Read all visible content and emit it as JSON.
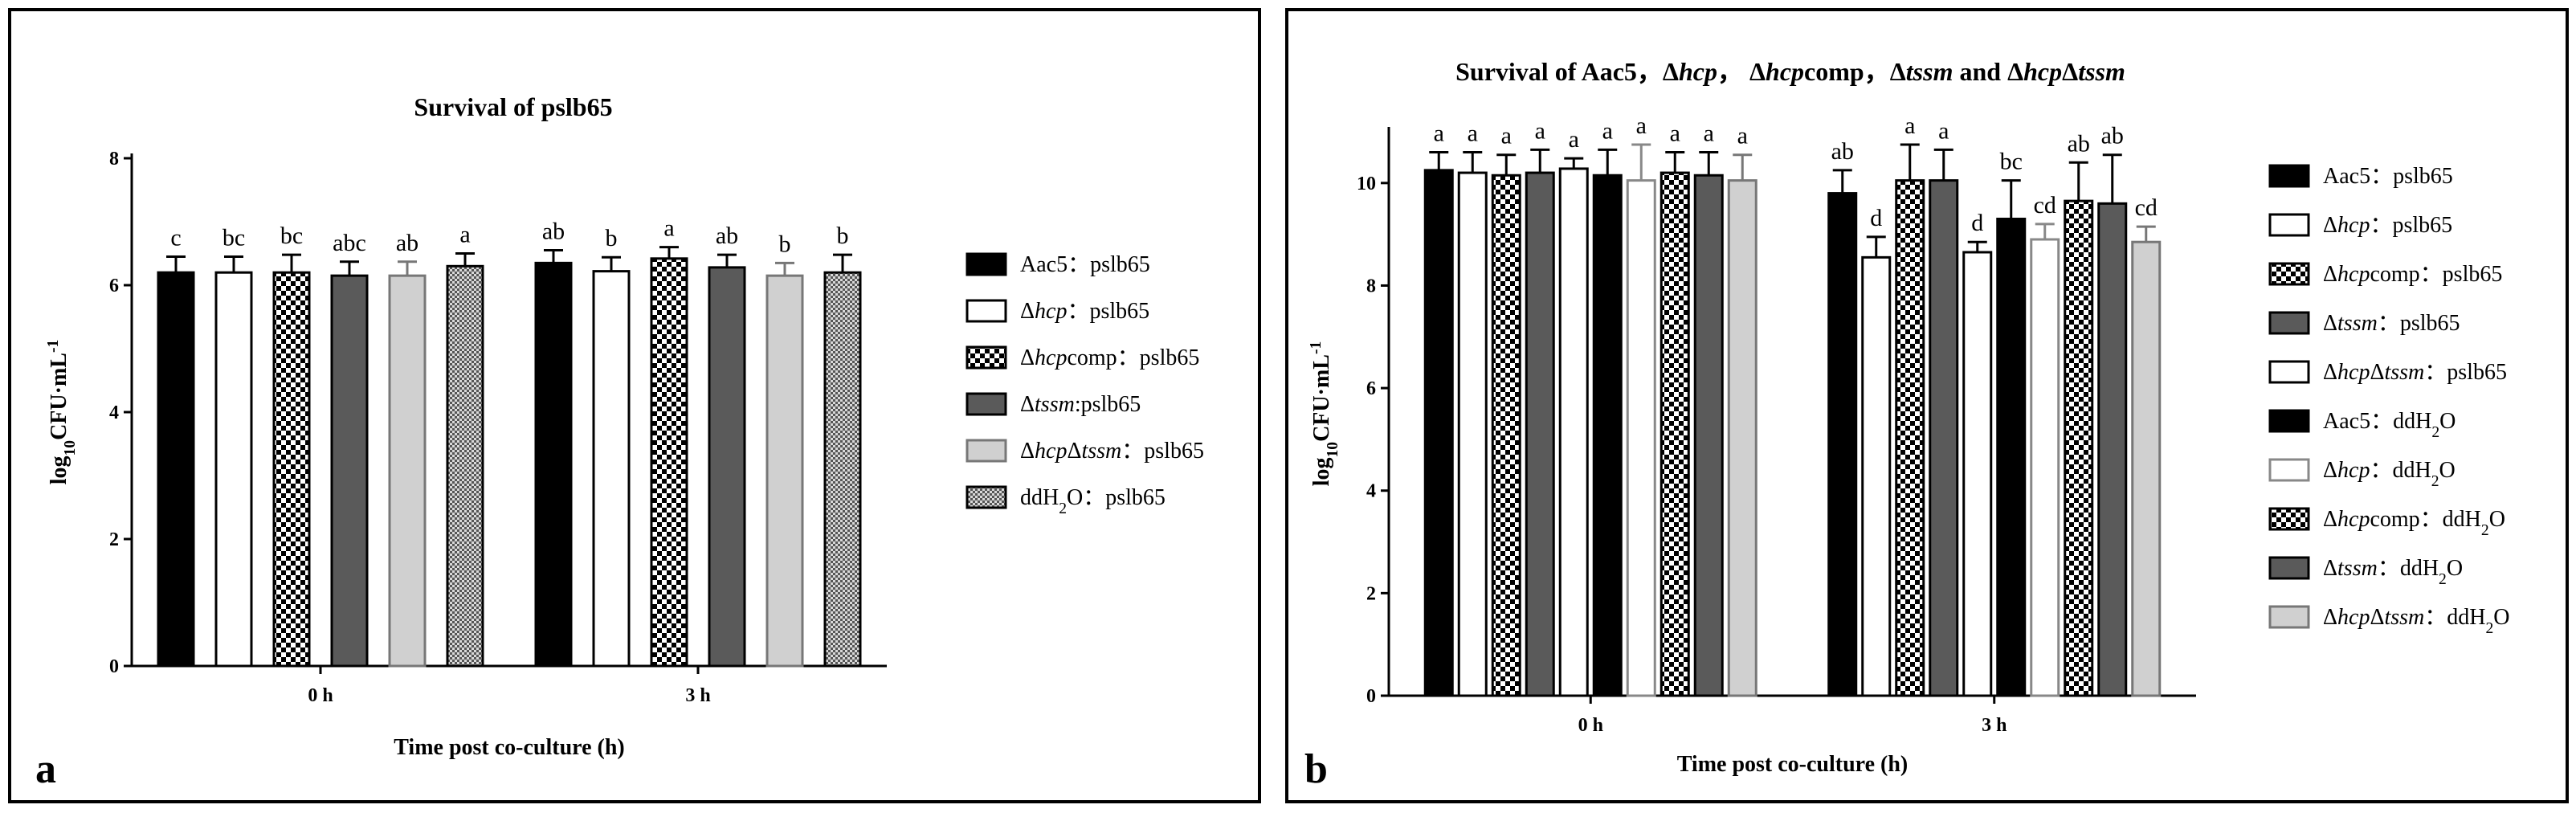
{
  "chart_data": [
    {
      "panel_label": "a",
      "type": "bar",
      "title": "Survival of pslb65",
      "xlabel": "Time post co-culture (h)",
      "ylabel": "log₁₀CFU·mL⁻¹",
      "categories": [
        "0 h",
        "3 h"
      ],
      "ylim": [
        0,
        8
      ],
      "yticks": [
        0,
        2,
        4,
        6,
        8
      ],
      "legend": "right",
      "series": [
        {
          "name": "Aac5：pslb65",
          "pattern": "black",
          "values": [
            6.2,
            6.35
          ],
          "errors": [
            0.25,
            0.2
          ],
          "letters": [
            "c",
            "ab"
          ]
        },
        {
          "name": "Δhcp：pslb65",
          "pattern": "white",
          "values": [
            6.2,
            6.22
          ],
          "errors": [
            0.25,
            0.22
          ],
          "letters": [
            "bc",
            "b"
          ]
        },
        {
          "name": "Δhcpcomp：pslb65",
          "pattern": "checker",
          "values": [
            6.2,
            6.42
          ],
          "errors": [
            0.28,
            0.18
          ],
          "letters": [
            "bc",
            "a"
          ]
        },
        {
          "name": "Δtssm:pslb65",
          "pattern": "darkgray",
          "values": [
            6.15,
            6.28
          ],
          "errors": [
            0.22,
            0.2
          ],
          "letters": [
            "abc",
            "ab"
          ]
        },
        {
          "name": "ΔhcpΔtssm：pslb65",
          "pattern": "lightgray",
          "values": [
            6.15,
            6.15
          ],
          "errors": [
            0.22,
            0.2
          ],
          "letters": [
            "ab",
            "b"
          ]
        },
        {
          "name": "ddH₂O：pslb65",
          "pattern": "fine",
          "values": [
            6.3,
            6.2
          ],
          "errors": [
            0.2,
            0.28
          ],
          "letters": [
            "a",
            "b"
          ]
        }
      ]
    },
    {
      "panel_label": "b",
      "type": "bar",
      "title": "Survival of Aac5，Δhcp， Δhcpcomp，Δtssm and ΔhcpΔtssm",
      "xlabel": "Time post co-culture (h)",
      "ylabel": "log₁₀CFU·mL⁻¹",
      "categories": [
        "0 h",
        "3 h"
      ],
      "ylim": [
        0,
        11
      ],
      "yticks": [
        0,
        2,
        4,
        6,
        8,
        10
      ],
      "legend": "right",
      "series": [
        {
          "name": "Aac5：pslb65",
          "pattern": "black",
          "values": [
            10.25,
            9.8
          ],
          "errors": [
            0.35,
            0.45
          ],
          "letters": [
            "a",
            "ab"
          ]
        },
        {
          "name": "Δhcp：pslb65",
          "pattern": "white",
          "values": [
            10.2,
            8.55
          ],
          "errors": [
            0.4,
            0.4
          ],
          "letters": [
            "a",
            "d"
          ]
        },
        {
          "name": "Δhcpcomp：pslb65",
          "pattern": "checker",
          "values": [
            10.15,
            10.05
          ],
          "errors": [
            0.4,
            0.7
          ],
          "letters": [
            "a",
            "a"
          ]
        },
        {
          "name": "Δtssm：pslb65",
          "pattern": "darkgray",
          "values": [
            10.2,
            10.05
          ],
          "errors": [
            0.45,
            0.6
          ],
          "letters": [
            "a",
            "a"
          ]
        },
        {
          "name": "ΔhcpΔtssm：pslb65",
          "pattern": "white",
          "values": [
            10.28,
            8.65
          ],
          "errors": [
            0.2,
            0.2
          ],
          "letters": [
            "a",
            "d"
          ]
        },
        {
          "name": "Aac5：ddH₂O",
          "pattern": "black",
          "values": [
            10.15,
            9.3
          ],
          "errors": [
            0.5,
            0.75
          ],
          "letters": [
            "a",
            "bc"
          ]
        },
        {
          "name": "Δhcp：ddH₂O",
          "pattern": "white-gray",
          "values": [
            10.05,
            8.9
          ],
          "errors": [
            0.7,
            0.3
          ],
          "letters": [
            "a",
            "cd"
          ]
        },
        {
          "name": "Δhcpcomp：ddH₂O",
          "pattern": "checker",
          "values": [
            10.2,
            9.65
          ],
          "errors": [
            0.4,
            0.75
          ],
          "letters": [
            "a",
            "ab"
          ]
        },
        {
          "name": "Δtssm：ddH₂O",
          "pattern": "darkgray",
          "values": [
            10.15,
            9.6
          ],
          "errors": [
            0.45,
            0.95
          ],
          "letters": [
            "a",
            "ab"
          ]
        },
        {
          "name": "ΔhcpΔtssm：ddH₂O",
          "pattern": "lightgray",
          "values": [
            10.05,
            8.85
          ],
          "errors": [
            0.5,
            0.3
          ],
          "letters": [
            "a",
            "cd"
          ]
        }
      ]
    }
  ]
}
